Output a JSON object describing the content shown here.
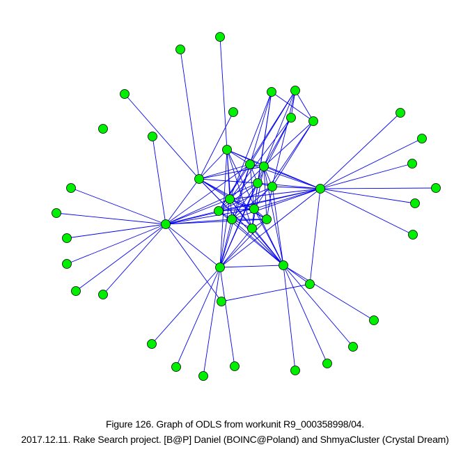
{
  "figure": {
    "caption_line_1": "Figure 126. Graph of ODLS from workunit R9_000358998/04.",
    "caption_line_2": "2017.12.11. Rake Search project. [B@P] Daniel (BOINC@Poland) and ShmyaCluster (Crystal Dream)"
  },
  "graph": {
    "edge_color": "#0000ee",
    "node_fill": "#00ee00",
    "node_stroke": "#000000"
  }
}
